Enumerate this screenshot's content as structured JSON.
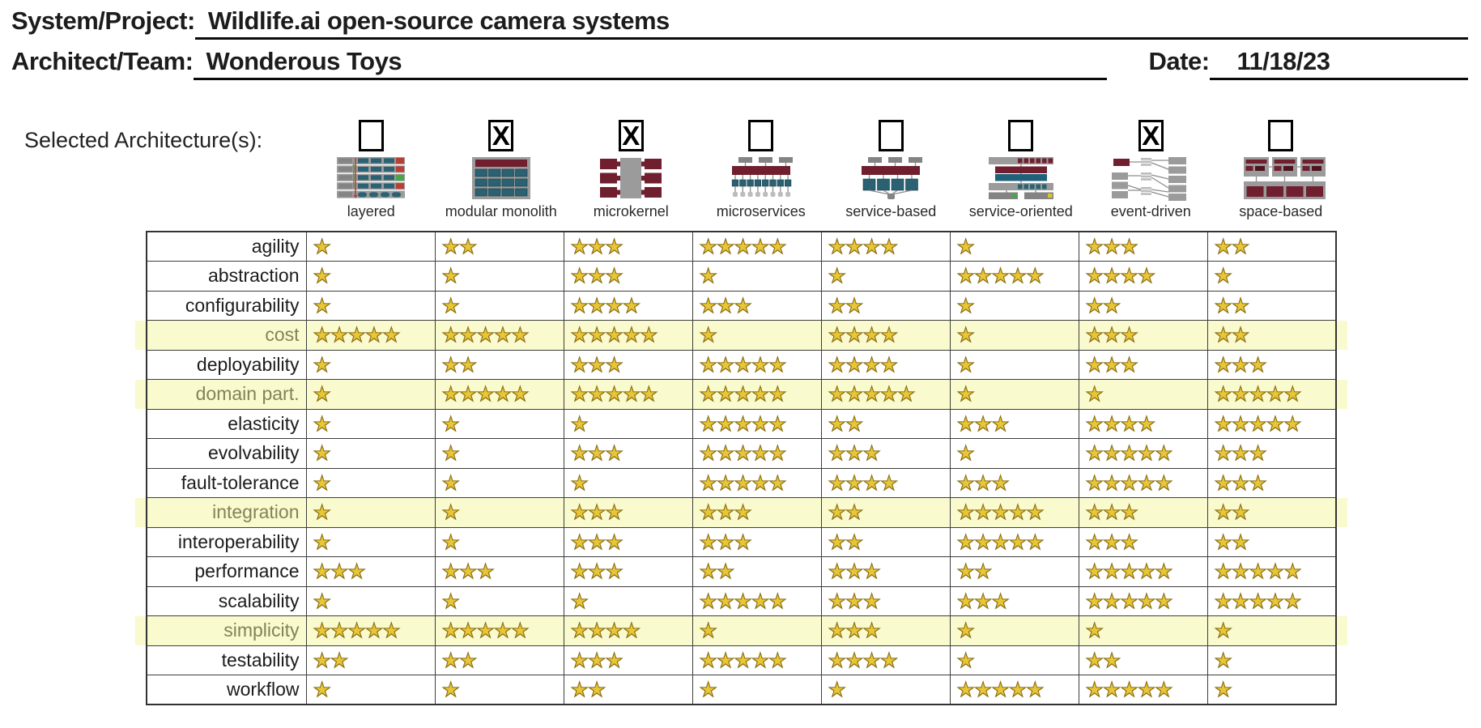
{
  "colors": {
    "star_gold": "#e8c636",
    "star_outline": "#8a6d13",
    "row_highlight": "#fafacf",
    "highlight_label": "#83835a",
    "icon_maroon": "#6f1f2e",
    "icon_teal": "#2a6273",
    "icon_gray": "#9b9b9b"
  },
  "header": {
    "system_project_label": "System/Project:",
    "system_project_value": "Wildlife.ai open-source camera systems",
    "architect_label": "Architect/Team:",
    "architect_value": "Wonderous Toys",
    "date_label": "Date:",
    "date_value": "11/18/23"
  },
  "selection": {
    "label": "Selected Architecture(s):",
    "checkbox_mark": "X"
  },
  "architectures": [
    {
      "id": "layered",
      "label": "layered",
      "selected": false
    },
    {
      "id": "modular-monolith",
      "label": "modular monolith",
      "selected": true
    },
    {
      "id": "microkernel",
      "label": "microkernel",
      "selected": true
    },
    {
      "id": "microservices",
      "label": "microservices",
      "selected": false
    },
    {
      "id": "service-based",
      "label": "service-based",
      "selected": false
    },
    {
      "id": "service-oriented",
      "label": "service-oriented",
      "selected": false
    },
    {
      "id": "event-driven",
      "label": "event-driven",
      "selected": true
    },
    {
      "id": "space-based",
      "label": "space-based",
      "selected": false
    }
  ],
  "ratings": {
    "star_symbol": "★",
    "max_stars": 5,
    "columns": [
      "layered",
      "modular monolith",
      "microkernel",
      "microservices",
      "service-based",
      "service-oriented",
      "event-driven",
      "space-based"
    ],
    "rows": [
      {
        "characteristic": "agility",
        "highlighted": false,
        "scores": [
          1,
          2,
          3,
          5,
          4,
          1,
          3,
          2
        ]
      },
      {
        "characteristic": "abstraction",
        "highlighted": false,
        "scores": [
          1,
          1,
          3,
          1,
          1,
          5,
          4,
          1
        ]
      },
      {
        "characteristic": "configurability",
        "highlighted": false,
        "scores": [
          1,
          1,
          4,
          3,
          2,
          1,
          2,
          2
        ]
      },
      {
        "characteristic": "cost",
        "highlighted": true,
        "scores": [
          5,
          5,
          5,
          1,
          4,
          1,
          3,
          2
        ]
      },
      {
        "characteristic": "deployability",
        "highlighted": false,
        "scores": [
          1,
          2,
          3,
          5,
          4,
          1,
          3,
          3
        ]
      },
      {
        "characteristic": "domain part.",
        "highlighted": true,
        "scores": [
          1,
          5,
          5,
          5,
          5,
          1,
          1,
          5
        ]
      },
      {
        "characteristic": "elasticity",
        "highlighted": false,
        "scores": [
          1,
          1,
          1,
          5,
          2,
          3,
          4,
          5
        ]
      },
      {
        "characteristic": "evolvability",
        "highlighted": false,
        "scores": [
          1,
          1,
          3,
          5,
          3,
          1,
          5,
          3
        ]
      },
      {
        "characteristic": "fault-tolerance",
        "highlighted": false,
        "scores": [
          1,
          1,
          1,
          5,
          4,
          3,
          5,
          3
        ]
      },
      {
        "characteristic": "integration",
        "highlighted": true,
        "scores": [
          1,
          1,
          3,
          3,
          2,
          5,
          3,
          2
        ]
      },
      {
        "characteristic": "interoperability",
        "highlighted": false,
        "scores": [
          1,
          1,
          3,
          3,
          2,
          5,
          3,
          2
        ]
      },
      {
        "characteristic": "performance",
        "highlighted": false,
        "scores": [
          3,
          3,
          3,
          2,
          3,
          2,
          5,
          5
        ]
      },
      {
        "characteristic": "scalability",
        "highlighted": false,
        "scores": [
          1,
          1,
          1,
          5,
          3,
          3,
          5,
          5
        ]
      },
      {
        "characteristic": "simplicity",
        "highlighted": true,
        "scores": [
          5,
          5,
          4,
          1,
          3,
          1,
          1,
          1
        ]
      },
      {
        "characteristic": "testability",
        "highlighted": false,
        "scores": [
          2,
          2,
          3,
          5,
          4,
          1,
          2,
          1
        ]
      },
      {
        "characteristic": "workflow",
        "highlighted": false,
        "scores": [
          1,
          1,
          2,
          1,
          1,
          5,
          5,
          1
        ]
      }
    ]
  }
}
